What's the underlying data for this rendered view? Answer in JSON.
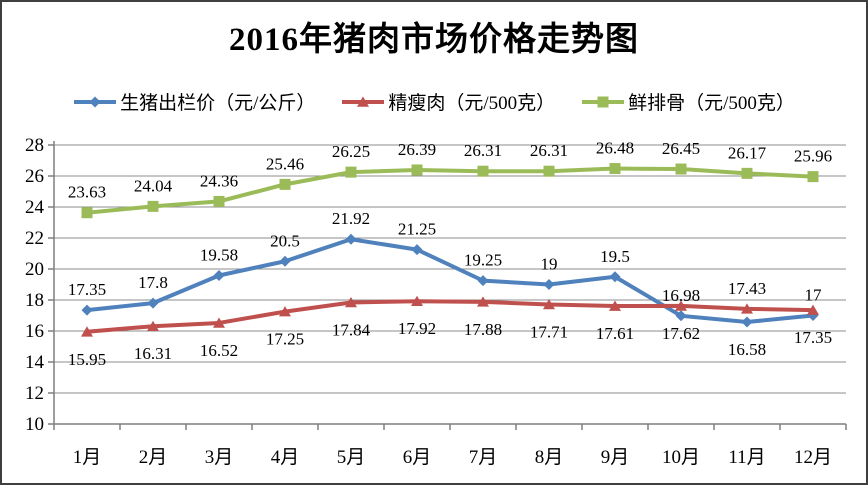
{
  "window": {
    "title": "2016年猪肉市场价格走势图"
  },
  "chart_data": {
    "type": "line",
    "title": "2016年猪肉市场价格走势图",
    "categories": [
      "1月",
      "2月",
      "3月",
      "4月",
      "5月",
      "6月",
      "7月",
      "8月",
      "9月",
      "10月",
      "11月",
      "12月"
    ],
    "series": [
      {
        "name": "生猪出栏价（元/公斤）",
        "color": "#4F81BD",
        "marker": "diamond",
        "values": [
          17.35,
          17.8,
          19.58,
          20.5,
          21.92,
          21.25,
          19.25,
          19,
          19.5,
          16.98,
          16.58,
          17
        ],
        "label_positions": [
          "above",
          "above",
          "above",
          "above",
          "above",
          "above",
          "above",
          "above",
          "above",
          "above",
          "below",
          "above"
        ]
      },
      {
        "name": "精瘦肉（元/500克）",
        "color": "#C0504D",
        "marker": "triangle",
        "values": [
          15.95,
          16.31,
          16.52,
          17.25,
          17.84,
          17.92,
          17.88,
          17.71,
          17.61,
          17.62,
          17.43,
          17.35
        ],
        "label_positions": [
          "below",
          "below",
          "below",
          "below",
          "below",
          "below",
          "below",
          "below",
          "below",
          "below",
          "above",
          "below"
        ]
      },
      {
        "name": "鲜排骨（元/500克）",
        "color": "#9BBB59",
        "marker": "square",
        "values": [
          23.63,
          24.04,
          24.36,
          25.46,
          26.25,
          26.39,
          26.31,
          26.31,
          26.48,
          26.45,
          26.17,
          25.96
        ],
        "label_positions": [
          "above",
          "above",
          "above",
          "above",
          "above",
          "above",
          "above",
          "above",
          "above",
          "above",
          "above",
          "above"
        ]
      }
    ],
    "xlabel": "",
    "ylabel": "",
    "ylim": [
      10,
      28
    ],
    "yticks": [
      10,
      12,
      14,
      16,
      18,
      20,
      22,
      24,
      26,
      28
    ],
    "grid": true,
    "data_labels": true,
    "legend_position": "top",
    "colors": {
      "gridline": "#8e8e8e",
      "axis": "#7f7f7f",
      "text": "#000000",
      "background": "#ffffff",
      "border": "#3f3f3f"
    }
  }
}
